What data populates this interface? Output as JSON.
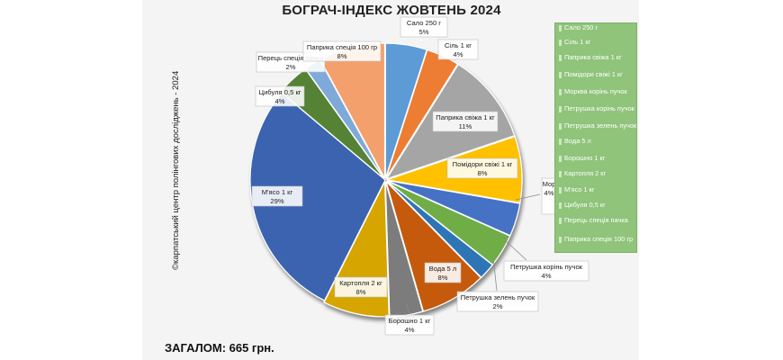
{
  "chart_data": {
    "type": "pie",
    "title": "БОГРАЧ-ІНДЕКС ЖОВТЕНЬ 2024",
    "slices": [
      {
        "label": "Сало 250 г",
        "pct": "5%",
        "value": 5,
        "color": "#5b9bd5"
      },
      {
        "label": "Сіль 1 кг",
        "pct": "4%",
        "value": 4,
        "color": "#ed7d31"
      },
      {
        "label": "Паприка свіжа 1 кг",
        "pct": "11%",
        "value": 11,
        "color": "#a5a5a5"
      },
      {
        "label": "Помідори свіжі 1 кг",
        "pct": "8%",
        "value": 8,
        "color": "#ffc000"
      },
      {
        "label": "Морква корінь пучок",
        "pct": "4%",
        "value": 4,
        "color": "#4472c4"
      },
      {
        "label": "Петрушка корінь пучок",
        "pct": "4%",
        "value": 4,
        "color": "#70ad47"
      },
      {
        "label": "Петрушка зелень пучок",
        "pct": "2%",
        "value": 2,
        "color": "#2e75b6"
      },
      {
        "label": "Вода 5 л",
        "pct": "8%",
        "value": 8,
        "color": "#c55a11"
      },
      {
        "label": "Борошно 1 кг",
        "pct": "4%",
        "value": 4,
        "color": "#7b7b7b"
      },
      {
        "label": "Картопля 2 кг",
        "pct": "8%",
        "value": 8,
        "color": "#d6a500"
      },
      {
        "label": "М'ясо 1 кг",
        "pct": "29%",
        "value": 29,
        "color": "#3a64b0"
      },
      {
        "label": "Цибуля 0,5 кг",
        "pct": "4%",
        "value": 4,
        "color": "#548235"
      },
      {
        "label": "Перець спеція пачка",
        "pct": "2%",
        "value": 2,
        "color": "#7fa9d9"
      },
      {
        "label": "Паприка спеція 100 гр",
        "pct": "8%",
        "value": 8,
        "color": "#f4a06c"
      }
    ]
  },
  "slice_labels": {
    "salo": {
      "name": "Сало 250 г",
      "pct": "5%"
    },
    "sil": {
      "name": "Сіль 1 кг",
      "pct": "4%"
    },
    "paprika_svizha": {
      "name": "Паприка свіжа 1 кг",
      "pct": "11%"
    },
    "pomidory": {
      "name": "Помідори свіжі 1 кг",
      "pct": "8%"
    },
    "morkva": {
      "name": "Морква корінь пучок",
      "name_visible": "Мор",
      "pct": "4%"
    },
    "petrushka_korin": {
      "name": "Петрушка корінь пучок",
      "pct": "4%"
    },
    "petrushka_zelen": {
      "name": "Петрушка зелень пучок",
      "pct": "2%"
    },
    "voda": {
      "name": "Вода 5 л",
      "pct": "8%"
    },
    "boroshno": {
      "name": "Борошно 1 кг",
      "pct": "4%"
    },
    "kartoplia": {
      "name": "Картопля 2 кг",
      "pct": "8%"
    },
    "miaso": {
      "name": "М'ясо 1 кг",
      "pct": "29%"
    },
    "tsybulia": {
      "name": "Цибуля 0,5 кг",
      "pct": "4%"
    },
    "perets": {
      "name": "Перець спеція пачка",
      "pct": "2%"
    },
    "paprika_spetsiia": {
      "name": "Паприка спеція 100 гр",
      "pct": "8%"
    }
  },
  "legend": [
    "Сало 250 г",
    "Сіль 1 кг",
    "Паприка свіжа 1 кг",
    "Помідори свіжі 1 кг",
    "Морква корінь пучок",
    "Петрушка корінь пучок",
    "Петрушка зелень пучок",
    "Вода 5 л",
    "Борошно 1 кг",
    "Картопля 2 кг",
    "М'ясо 1 кг",
    "Цибуля 0,5 кг",
    "Перець спеція пачка",
    "Паприка спеція 100 гр"
  ],
  "credit": "©карпатський центр полінгових досліджень - 2024",
  "total": "ЗАГАЛОМ: 665 грн.",
  "colors": {
    "legend_bg": "#8fc47a",
    "stage_bg": "#f4f4f4"
  }
}
